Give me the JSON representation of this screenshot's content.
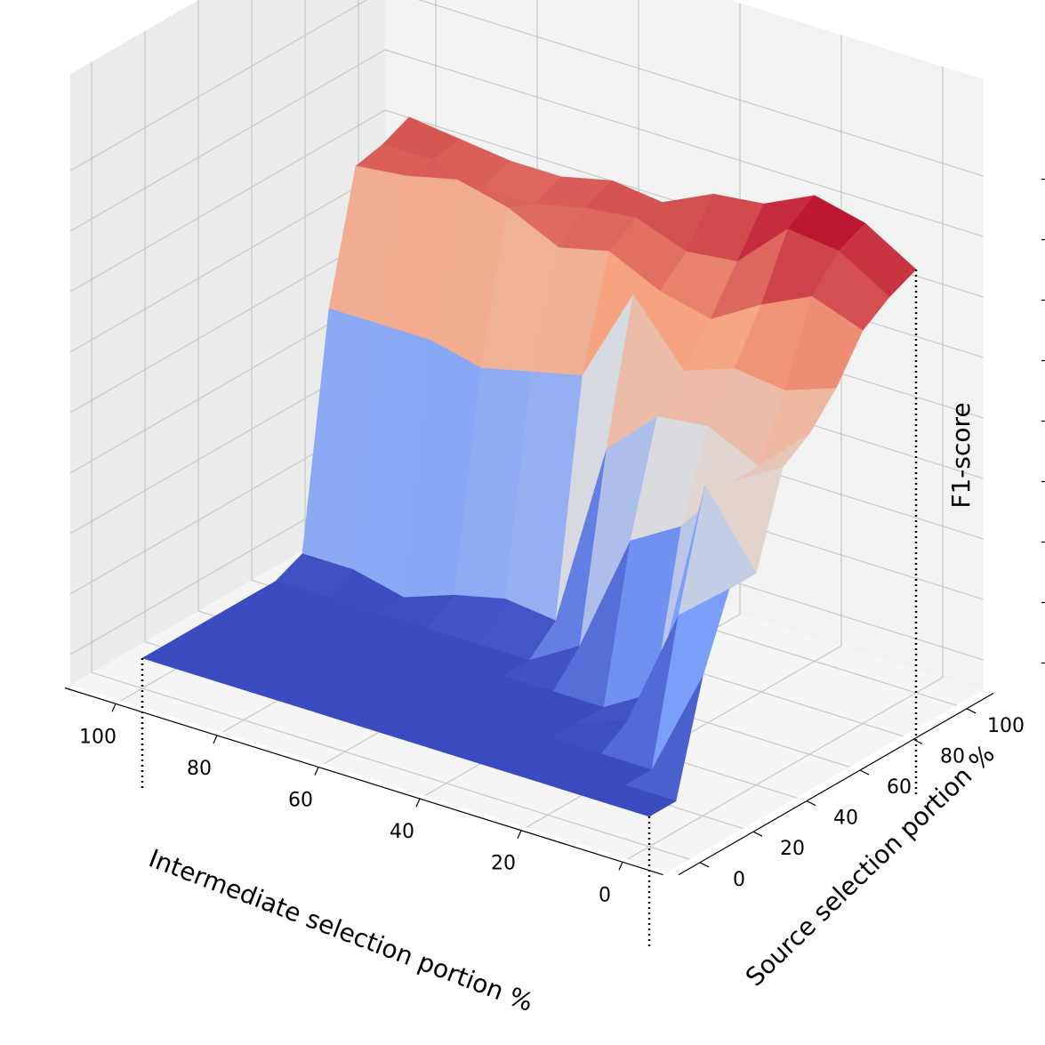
{
  "chart_data": {
    "type": "surface",
    "colormap": "coolwarm",
    "xlabel": "Intermediate selection portion %",
    "ylabel": "Source selection portion %",
    "zlabel": "F1-score",
    "x_ticks": [
      "100",
      "80",
      "60",
      "40",
      "20",
      "0"
    ],
    "y_ticks": [
      "0",
      "20",
      "40",
      "60",
      "80",
      "100"
    ],
    "z_ticks": [
      "0",
      "10",
      "20",
      "30",
      "40",
      "50",
      "60",
      "70",
      "80"
    ],
    "xlim": [
      0,
      100
    ],
    "ylim": [
      0,
      100
    ],
    "zlim": [
      0,
      80
    ],
    "grid": true,
    "x": [
      0,
      10,
      20,
      30,
      40,
      50,
      60,
      70,
      80,
      90,
      100
    ],
    "y": [
      0,
      10,
      20,
      30,
      40,
      50,
      60,
      70,
      80,
      90,
      100
    ],
    "z": [
      [
        0,
        0,
        0,
        0,
        0,
        0,
        0,
        0,
        0,
        0,
        0
      ],
      [
        0,
        0,
        0,
        0,
        0,
        0,
        0,
        0,
        0,
        0,
        0
      ],
      [
        18,
        0,
        0,
        0,
        0,
        0,
        0,
        0,
        0,
        0,
        0
      ],
      [
        30,
        23,
        3,
        0,
        0,
        0,
        0,
        0,
        0,
        0,
        0
      ],
      [
        30,
        42,
        5,
        0,
        0,
        0,
        0,
        0,
        0,
        0,
        0
      ],
      [
        45,
        40,
        30,
        25,
        5,
        0,
        0,
        0,
        0,
        0,
        0
      ],
      [
        48,
        40,
        44,
        43,
        35,
        4,
        5,
        3,
        0,
        2,
        2
      ],
      [
        53,
        50,
        51,
        48,
        58,
        42,
        40,
        38,
        40,
        40,
        40
      ],
      [
        60,
        63,
        59,
        54,
        56,
        60,
        58,
        62,
        64,
        62,
        61
      ],
      [
        63,
        68,
        69,
        61,
        60,
        63,
        62,
        60,
        60,
        62,
        62
      ],
      [
        65,
        70,
        72,
        68,
        67,
        63,
        64,
        62,
        62,
        63,
        64
      ]
    ]
  }
}
